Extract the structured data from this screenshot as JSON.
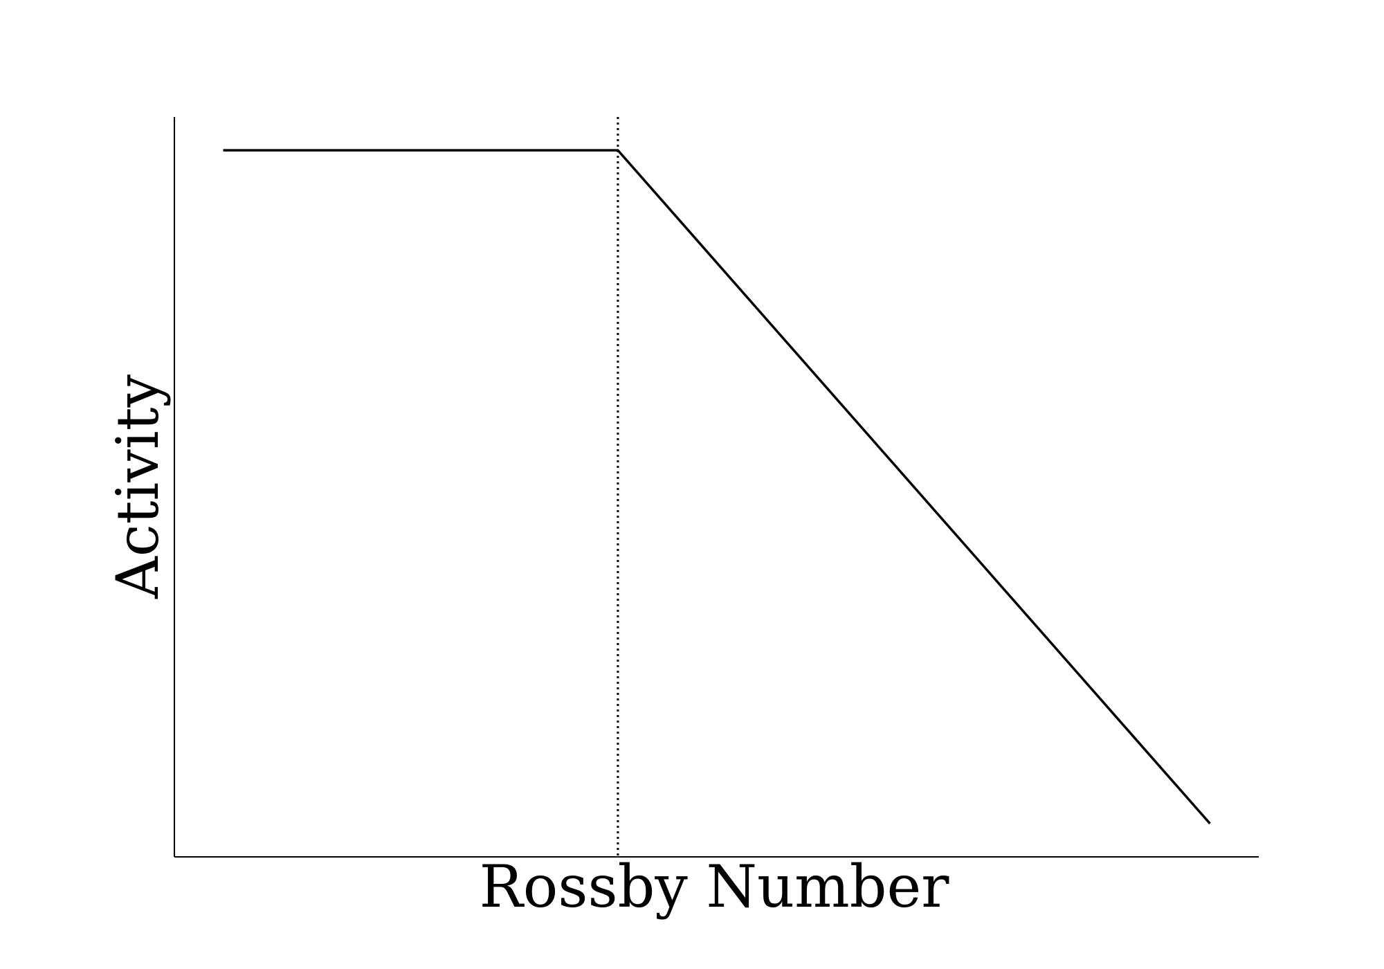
{
  "chart_data": {
    "type": "line",
    "title": "",
    "xlabel": "Rossby Number",
    "ylabel": "Activity",
    "xlim": [
      0,
      1
    ],
    "ylim": [
      0,
      1
    ],
    "x_ticks": [],
    "y_ticks": [],
    "grid": false,
    "legend": "none",
    "series": [
      {
        "x": [
          0.045,
          0.409,
          0.955
        ],
        "y": [
          0.955,
          0.955,
          0.045
        ],
        "color": "#000000",
        "style": "solid"
      }
    ],
    "vlines": [
      {
        "x": 0.409,
        "color": "#000000",
        "style": "dotted"
      }
    ]
  }
}
